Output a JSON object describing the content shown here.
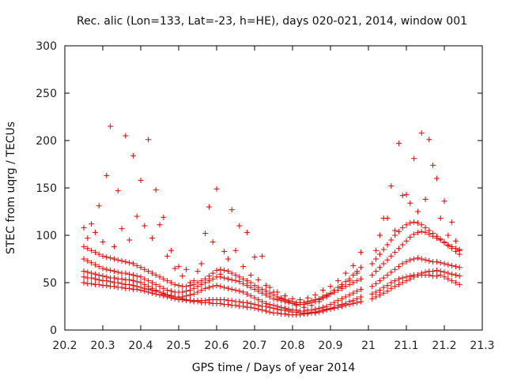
{
  "chart_data": {
    "type": "scatter",
    "title": "Rec. alic (Lon=133, Lat=-23, h=HE), days 020-021, 2014, window 001",
    "xlabel": "GPS time / Days of year 2014",
    "ylabel": "STEC from uqrg / TECUs",
    "xlim": [
      20.2,
      21.3
    ],
    "ylim": [
      0,
      300
    ],
    "xticks": [
      "20.2",
      "20.3",
      "20.4",
      "20.5",
      "20.6",
      "20.7",
      "20.8",
      "20.9",
      "21",
      "21.1",
      "21.2",
      "21.3"
    ],
    "yticks": [
      "0",
      "50",
      "100",
      "150",
      "200",
      "250",
      "300"
    ],
    "grid": false,
    "legend": "none",
    "marker": "+",
    "color": "#e00000",
    "series": [
      {
        "x": [
          20.25,
          20.26,
          20.27,
          20.28,
          20.29,
          20.3,
          20.31,
          20.32,
          20.33,
          20.34,
          20.35,
          20.36,
          20.37,
          20.38,
          20.39,
          20.4,
          20.41,
          20.42,
          20.43,
          20.44,
          20.45,
          20.46,
          20.47,
          20.48,
          20.49,
          20.5,
          20.51,
          20.52,
          20.53,
          20.54,
          20.55,
          20.56,
          20.57,
          20.58,
          20.59,
          20.6,
          20.61,
          20.62,
          20.63,
          20.64,
          20.65,
          20.66,
          20.67,
          20.68,
          20.69,
          20.7,
          20.71,
          20.72,
          20.73,
          20.74,
          20.75,
          20.76,
          20.77,
          20.78,
          20.79,
          20.8,
          20.81,
          20.82,
          20.83,
          20.84,
          20.85,
          20.86,
          20.87,
          20.88,
          20.89,
          20.9,
          20.91,
          20.92,
          20.93,
          20.94,
          20.95,
          20.96,
          20.97,
          20.98,
          21.01,
          21.02,
          21.03,
          21.04,
          21.05,
          21.06,
          21.07,
          21.08,
          21.09,
          21.1,
          21.11,
          21.12,
          21.13,
          21.14,
          21.15,
          21.16,
          21.17,
          21.18,
          21.19,
          21.2,
          21.21,
          21.22,
          21.23,
          21.24
        ],
        "y": [
          50,
          49,
          49,
          48,
          48,
          47,
          47,
          46,
          46,
          45,
          45,
          44,
          44,
          43,
          43,
          42,
          41,
          40,
          39,
          38,
          37,
          36,
          35,
          34,
          33,
          32,
          32,
          31,
          31,
          31,
          31,
          31,
          31,
          32,
          32,
          32,
          32,
          32,
          31,
          31,
          30,
          30,
          29,
          29,
          28,
          27,
          26,
          25,
          25,
          24,
          23,
          22,
          21,
          21,
          20,
          19,
          19,
          18,
          18,
          18,
          19,
          19,
          20,
          21,
          22,
          23,
          24,
          26,
          27,
          28,
          30,
          31,
          33,
          35,
          38,
          40,
          42,
          45,
          47,
          50,
          52,
          54,
          55,
          56,
          57,
          58,
          58,
          58,
          58,
          58,
          57,
          57,
          58,
          56,
          54,
          52,
          50,
          48
        ]
      },
      {
        "x": [
          20.25,
          20.26,
          20.27,
          20.28,
          20.29,
          20.3,
          20.31,
          20.32,
          20.33,
          20.34,
          20.35,
          20.36,
          20.37,
          20.38,
          20.39,
          20.4,
          20.41,
          20.42,
          20.43,
          20.44,
          20.45,
          20.46,
          20.47,
          20.48,
          20.49,
          20.5,
          20.51,
          20.52,
          20.53,
          20.54,
          20.55,
          20.56,
          20.57,
          20.58,
          20.59,
          20.6,
          20.61,
          20.62,
          20.63,
          20.64,
          20.65,
          20.66,
          20.67,
          20.68,
          20.69,
          20.7,
          20.71,
          20.72,
          20.73,
          20.74,
          20.75,
          20.76,
          20.77,
          20.78,
          20.79,
          20.8,
          20.81,
          20.82,
          20.83,
          20.84,
          20.85,
          20.86,
          20.87,
          20.88,
          20.89,
          20.9,
          20.91,
          20.92,
          20.93,
          20.94,
          20.95,
          20.96,
          20.97,
          20.98,
          21.01,
          21.02,
          21.03,
          21.04,
          21.05,
          21.06,
          21.07,
          21.08,
          21.09,
          21.1,
          21.11,
          21.12,
          21.13,
          21.14,
          21.15,
          21.16,
          21.17,
          21.18,
          21.19,
          21.2,
          21.21,
          21.22,
          21.23,
          21.24
        ],
        "y": [
          56,
          55,
          55,
          54,
          53,
          52,
          52,
          51,
          50,
          50,
          49,
          48,
          48,
          47,
          46,
          45,
          44,
          43,
          42,
          41,
          40,
          39,
          37,
          36,
          35,
          34,
          33,
          32,
          31,
          30,
          30,
          29,
          29,
          29,
          28,
          28,
          28,
          27,
          27,
          26,
          26,
          25,
          25,
          24,
          24,
          23,
          22,
          21,
          20,
          19,
          18,
          18,
          17,
          17,
          16,
          16,
          16,
          16,
          17,
          17,
          18,
          18,
          19,
          20,
          21,
          22,
          23,
          24,
          25,
          26,
          27,
          28,
          29,
          30,
          33,
          35,
          37,
          39,
          41,
          44,
          46,
          48,
          50,
          52,
          54,
          56,
          58,
          60,
          61,
          62,
          62,
          63,
          62,
          61,
          60,
          59,
          58,
          57
        ]
      },
      {
        "x": [
          20.25,
          20.26,
          20.27,
          20.28,
          20.29,
          20.3,
          20.31,
          20.32,
          20.33,
          20.34,
          20.35,
          20.36,
          20.37,
          20.38,
          20.39,
          20.4,
          20.41,
          20.42,
          20.43,
          20.44,
          20.45,
          20.46,
          20.47,
          20.48,
          20.49,
          20.5,
          20.51,
          20.52,
          20.53,
          20.54,
          20.55,
          20.56,
          20.57,
          20.58,
          20.59,
          20.6,
          20.61,
          20.62,
          20.63,
          20.64,
          20.65,
          20.66,
          20.67,
          20.68,
          20.69,
          20.7,
          20.71,
          20.72,
          20.73,
          20.74,
          20.75,
          20.76,
          20.77,
          20.78,
          20.79,
          20.8,
          20.81,
          20.82,
          20.83,
          20.84,
          20.85,
          20.86,
          20.87,
          20.88,
          20.89,
          20.9,
          20.91,
          20.92,
          20.93,
          20.94,
          20.95,
          20.96,
          20.97,
          20.98,
          21.01,
          21.02,
          21.03,
          21.04,
          21.05,
          21.06,
          21.07,
          21.08,
          21.09,
          21.1,
          21.11,
          21.12,
          21.13,
          21.14,
          21.15,
          21.16,
          21.17,
          21.18,
          21.19,
          21.2,
          21.21,
          21.22,
          21.23,
          21.24
        ],
        "y": [
          62,
          61,
          60,
          59,
          58,
          57,
          56,
          55,
          55,
          54,
          54,
          53,
          53,
          52,
          51,
          50,
          48,
          46,
          44,
          42,
          40,
          38,
          37,
          36,
          35,
          35,
          35,
          36,
          37,
          38,
          40,
          42,
          44,
          45,
          46,
          47,
          46,
          45,
          44,
          43,
          42,
          41,
          40,
          38,
          36,
          34,
          32,
          30,
          28,
          27,
          26,
          25,
          24,
          23,
          22,
          21,
          21,
          20,
          20,
          21,
          21,
          22,
          23,
          24,
          25,
          27,
          29,
          31,
          33,
          35,
          37,
          39,
          41,
          43,
          46,
          49,
          52,
          55,
          58,
          61,
          64,
          67,
          70,
          72,
          74,
          75,
          76,
          75,
          74,
          73,
          72,
          72,
          71,
          70,
          69,
          68,
          67,
          66
        ]
      },
      {
        "x": [
          20.25,
          20.26,
          20.27,
          20.28,
          20.29,
          20.3,
          20.31,
          20.32,
          20.33,
          20.34,
          20.35,
          20.36,
          20.37,
          20.38,
          20.39,
          20.4,
          20.41,
          20.42,
          20.43,
          20.44,
          20.45,
          20.46,
          20.47,
          20.48,
          20.49,
          20.5,
          20.51,
          20.52,
          20.53,
          20.54,
          20.55,
          20.56,
          20.57,
          20.58,
          20.59,
          20.6,
          20.61,
          20.62,
          20.63,
          20.64,
          20.65,
          20.66,
          20.67,
          20.68,
          20.69,
          20.7,
          20.71,
          20.72,
          20.73,
          20.74,
          20.75,
          20.76,
          20.77,
          20.78,
          20.79,
          20.8,
          20.81,
          20.82,
          20.83,
          20.84,
          20.85,
          20.86,
          20.87,
          20.88,
          20.89,
          20.9,
          20.91,
          20.92,
          20.93,
          20.94,
          20.95,
          20.96,
          20.97,
          20.98,
          21.01,
          21.02,
          21.03,
          21.04,
          21.05,
          21.06,
          21.07,
          21.08,
          21.09,
          21.1,
          21.11,
          21.12,
          21.13,
          21.14,
          21.15,
          21.16,
          21.17,
          21.18,
          21.19,
          21.2,
          21.21,
          21.22,
          21.23,
          21.24
        ],
        "y": [
          75,
          73,
          71,
          69,
          67,
          65,
          64,
          63,
          62,
          61,
          60,
          60,
          59,
          58,
          57,
          56,
          54,
          52,
          50,
          48,
          46,
          44,
          42,
          41,
          40,
          40,
          40,
          41,
          42,
          44,
          46,
          48,
          50,
          52,
          54,
          56,
          56,
          55,
          54,
          53,
          52,
          51,
          49,
          47,
          45,
          43,
          41,
          39,
          37,
          35,
          33,
          32,
          31,
          30,
          29,
          28,
          27,
          27,
          27,
          28,
          29,
          30,
          32,
          34,
          36,
          38,
          40,
          42,
          44,
          46,
          48,
          50,
          52,
          54,
          58,
          62,
          66,
          70,
          74,
          78,
          82,
          86,
          90,
          94,
          98,
          101,
          103,
          104,
          103,
          101,
          99,
          97,
          95,
          92,
          89,
          86,
          83,
          80
        ]
      },
      {
        "x": [
          20.25,
          20.26,
          20.27,
          20.28,
          20.29,
          20.3,
          20.31,
          20.32,
          20.33,
          20.34,
          20.35,
          20.36,
          20.37,
          20.38,
          20.39,
          20.4,
          20.41,
          20.42,
          20.43,
          20.44,
          20.45,
          20.46,
          20.47,
          20.48,
          20.49,
          20.5,
          20.51,
          20.52,
          20.53,
          20.54,
          20.55,
          20.56,
          20.57,
          20.58,
          20.59,
          20.6,
          20.61,
          20.62,
          20.63,
          20.64,
          20.65,
          20.66,
          20.67,
          20.68,
          20.69,
          20.7,
          20.71,
          20.72,
          20.73,
          20.74,
          20.75,
          20.76,
          20.77,
          20.78,
          20.79,
          20.8,
          20.81,
          20.82,
          20.83,
          20.84,
          20.85,
          20.86,
          20.87,
          20.88,
          20.89,
          20.9,
          20.91,
          20.92,
          20.93,
          20.94,
          20.95,
          20.96,
          20.97,
          20.98,
          21.01,
          21.02,
          21.03,
          21.04,
          21.05,
          21.06,
          21.07,
          21.08,
          21.09,
          21.1,
          21.11,
          21.12,
          21.13,
          21.14,
          21.15,
          21.16,
          21.17,
          21.18,
          21.19,
          21.2,
          21.21,
          21.22,
          21.23,
          21.24
        ],
        "y": [
          88,
          86,
          84,
          82,
          80,
          78,
          77,
          76,
          75,
          74,
          73,
          72,
          71,
          70,
          68,
          66,
          64,
          62,
          60,
          58,
          56,
          54,
          52,
          50,
          48,
          47,
          46,
          46,
          47,
          48,
          50,
          52,
          54,
          57,
          60,
          63,
          64,
          63,
          62,
          60,
          58,
          56,
          54,
          52,
          50,
          47,
          45,
          43,
          41,
          39,
          37,
          35,
          33,
          32,
          31,
          30,
          29,
          29,
          29,
          30,
          31,
          32,
          33,
          35,
          37,
          39,
          42,
          45,
          48,
          51,
          54,
          58,
          62,
          66,
          70,
          75,
          80,
          85,
          90,
          95,
          100,
          104,
          108,
          111,
          113,
          114,
          113,
          111,
          108,
          105,
          102,
          99,
          96,
          93,
          90,
          88,
          86,
          85
        ]
      },
      {
        "x": [
          20.25,
          20.27,
          20.29,
          20.31,
          20.32,
          20.34,
          20.36,
          20.38,
          20.4,
          20.42,
          20.44,
          20.46,
          20.48,
          20.5,
          20.52,
          20.54,
          20.56,
          20.58,
          20.6,
          20.62,
          20.64,
          20.66,
          20.68,
          20.7,
          20.72,
          20.74,
          20.76,
          20.78,
          20.8,
          20.82,
          20.84,
          20.86,
          20.88,
          20.9,
          20.92,
          20.94,
          20.96,
          20.98,
          21.02,
          21.04,
          21.06,
          21.08,
          21.1,
          21.12,
          21.14,
          21.16,
          21.18,
          21.2,
          21.22,
          21.24
        ],
        "y": [
          108,
          112,
          131,
          163,
          215,
          147,
          205,
          184,
          158,
          201,
          148,
          119,
          84,
          67,
          64,
          52,
          70,
          130,
          149,
          83,
          127,
          110,
          103,
          77,
          78,
          45,
          40,
          36,
          33,
          32,
          34,
          37,
          42,
          46,
          52,
          60,
          68,
          82,
          84,
          118,
          152,
          197,
          143,
          181,
          208,
          201,
          160,
          136,
          114,
          84
        ]
      },
      {
        "x": [
          20.26,
          20.28,
          20.3,
          20.33,
          20.35,
          20.37,
          20.39,
          20.41,
          20.43,
          20.45,
          20.47,
          20.49,
          20.51,
          20.53,
          20.55,
          20.57,
          20.59,
          20.61,
          20.63,
          20.65,
          20.67,
          20.69,
          20.71,
          20.73,
          20.75,
          20.77,
          20.79,
          20.81,
          20.83,
          20.85,
          20.87,
          20.89,
          20.91,
          20.93,
          20.95,
          20.97,
          21.03,
          21.05,
          21.07,
          21.09,
          21.11,
          21.13,
          21.15,
          21.17,
          21.19,
          21.21,
          21.23
        ],
        "y": [
          97,
          103,
          93,
          88,
          107,
          95,
          120,
          110,
          97,
          111,
          78,
          65,
          57,
          50,
          62,
          102,
          93,
          59,
          75,
          84,
          67,
          58,
          53,
          47,
          40,
          34,
          30,
          26,
          24,
          26,
          30,
          35,
          40,
          46,
          52,
          60,
          100,
          118,
          105,
          142,
          134,
          125,
          138,
          174,
          118,
          100,
          94
        ]
      }
    ]
  }
}
